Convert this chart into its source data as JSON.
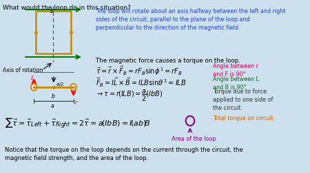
{
  "bg_color": "#cce0ee",
  "title": "What would the loop do in this situation?",
  "blue_text": "The loop will rotate about an axis halfway between the left and right\nsides of the circuit, parallel to the plane of the loop and\nperpendicular to the direction of the magnetic field.",
  "torque_intro": "The magnetic force causes a torque on the loop.",
  "ann1_text": "Angle between r\nand F is 90°",
  "ann1_color": "#cc0055",
  "ann2_text": "Angle between L\nand B is 90°",
  "ann2_color": "#007700",
  "ann3_text": "Torque due to force\napplied to one side of\nthe circuit.",
  "ann3_color": "#333333",
  "ann4_text": "Total torque on circuit.",
  "ann4_color": "#cc6600",
  "ann5_text": "Area of the loop",
  "ann5_color": "#880088",
  "notice_text": "Notice that the torque on the loop depends on the current through the circuit, the\nmagnetic field strength, and the area of the loop.",
  "axis_label": "Axis of rotation",
  "rect_color": "#cc8800",
  "arrow_color": "#007700",
  "dashed_color": "#555555",
  "blue_color": "#2244cc"
}
